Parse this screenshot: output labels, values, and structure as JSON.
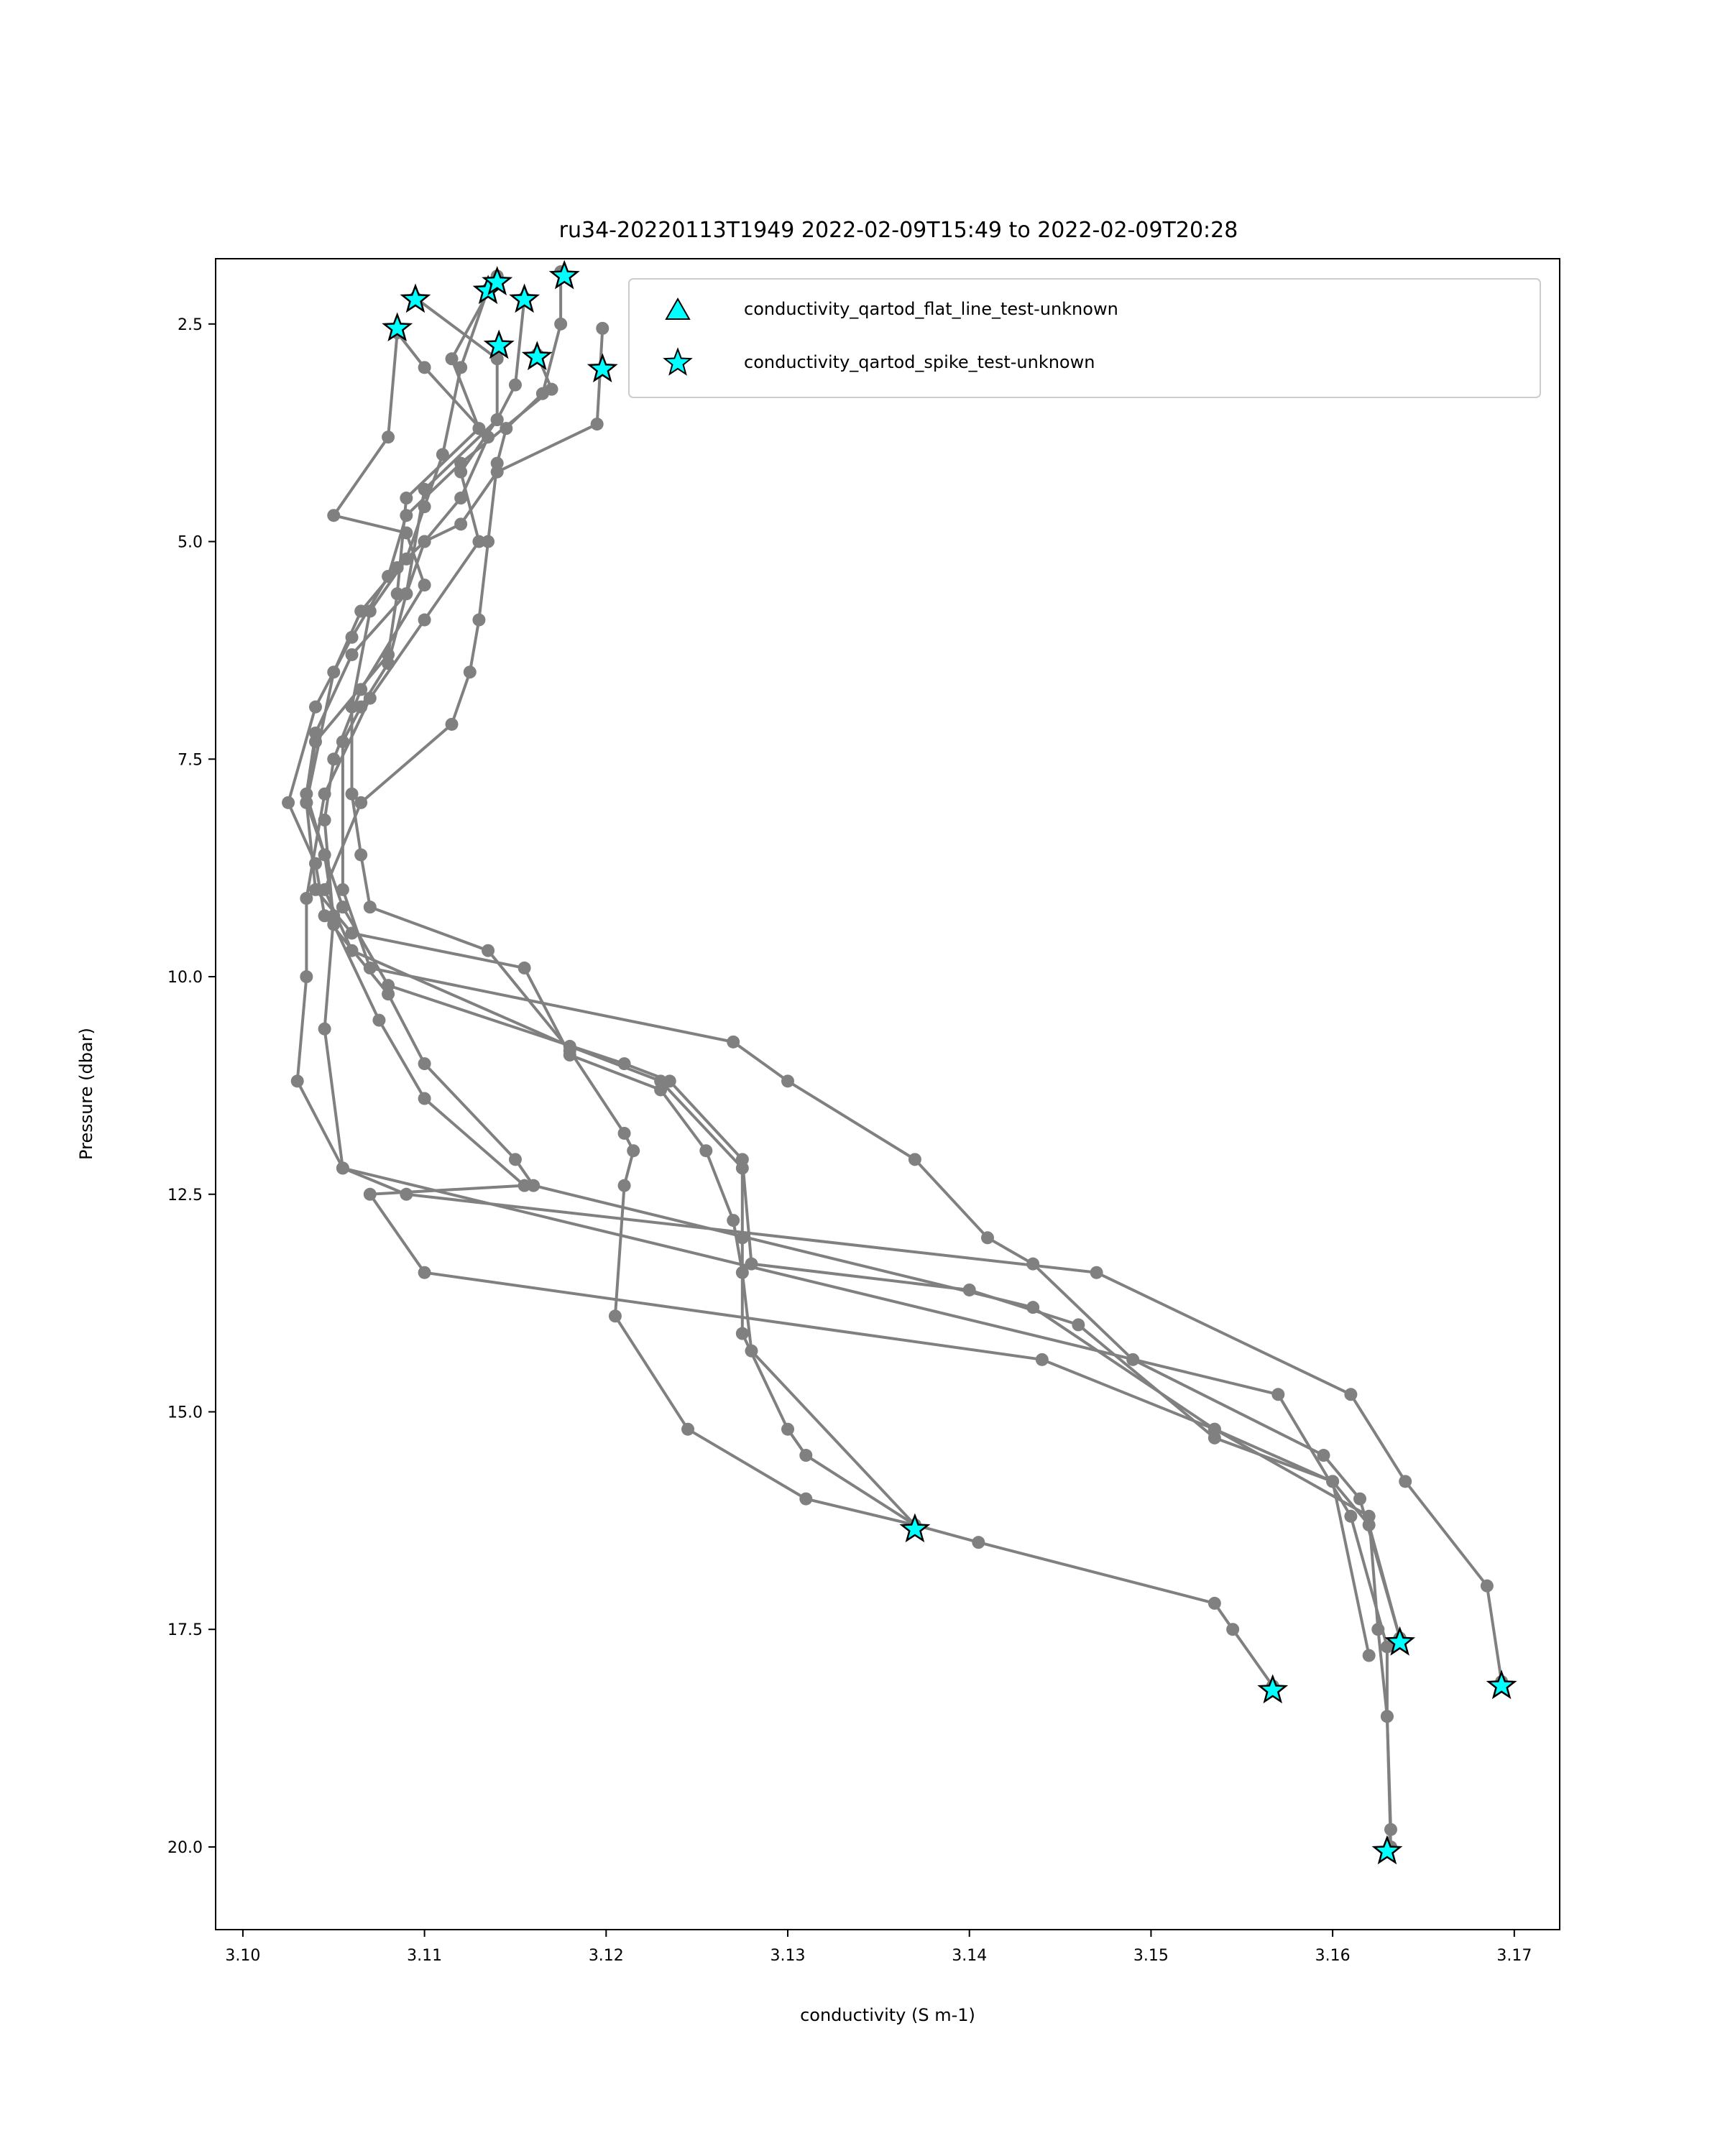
{
  "chart_data": {
    "type": "scatter",
    "title": "ru34-20220113T1949 2022-02-09T15:49 to 2022-02-09T20:28",
    "xlabel": "conductivity (S m-1)",
    "ylabel": "Pressure (dbar)",
    "xlim": [
      3.0985,
      3.1725
    ],
    "ylim": [
      20.95,
      1.75
    ],
    "y_inverted": true,
    "grid": false,
    "legend_position": "top-right",
    "x_ticks": [
      "3.10",
      "3.11",
      "3.12",
      "3.13",
      "3.14",
      "3.15",
      "3.16",
      "3.17"
    ],
    "x_tick_values": [
      3.1,
      3.11,
      3.12,
      3.13,
      3.14,
      3.15,
      3.16,
      3.17
    ],
    "y_ticks": [
      "2.5",
      "5.0",
      "7.5",
      "10.0",
      "12.5",
      "15.0",
      "17.5",
      "20.0"
    ],
    "y_tick_values": [
      2.5,
      5.0,
      7.5,
      10.0,
      12.5,
      15.0,
      17.5,
      20.0
    ],
    "colors": {
      "profile_line": "#808080",
      "flag_fill": "#00ffff",
      "flag_edge": "#000000"
    },
    "legend": [
      {
        "label": "conductivity_qartod_flat_line_test-unknown",
        "marker": "triangle"
      },
      {
        "label": "conductivity_qartod_spike_test-unknown",
        "marker": "star"
      }
    ],
    "series": [
      {
        "values": [
          [
            3.1085,
            2.6
          ],
          [
            3.11,
            3.0
          ],
          [
            3.1135,
            3.8
          ],
          [
            3.112,
            4.5
          ],
          [
            3.11,
            5.0
          ],
          [
            3.109,
            5.6
          ],
          [
            3.106,
            6.3
          ],
          [
            3.104,
            7.2
          ],
          [
            3.1035,
            7.9
          ],
          [
            3.1045,
            8.6
          ],
          [
            3.105,
            9.3
          ],
          [
            3.1045,
            10.6
          ],
          [
            3.1055,
            12.2
          ],
          [
            3.157,
            14.8
          ],
          [
            3.161,
            16.2
          ],
          [
            3.163,
            17.7
          ],
          [
            3.163,
            18.5
          ],
          [
            3.1632,
            19.8
          ],
          [
            3.163,
            20.05
          ]
        ]
      },
      {
        "values": [
          [
            3.1095,
            2.2
          ],
          [
            3.114,
            2.9
          ],
          [
            3.114,
            3.6
          ],
          [
            3.112,
            4.2
          ],
          [
            3.113,
            5.0
          ],
          [
            3.11,
            5.9
          ],
          [
            3.107,
            6.8
          ],
          [
            3.1045,
            7.9
          ],
          [
            3.1035,
            9.1
          ],
          [
            3.1035,
            10.0
          ],
          [
            3.103,
            11.2
          ],
          [
            3.1055,
            12.2
          ],
          [
            3.109,
            12.5
          ],
          [
            3.147,
            13.4
          ],
          [
            3.161,
            14.8
          ],
          [
            3.164,
            15.8
          ],
          [
            3.1685,
            17.0
          ],
          [
            3.1693,
            18.1
          ]
        ]
      },
      {
        "values": [
          [
            3.1135,
            2.1
          ],
          [
            3.112,
            3.0
          ],
          [
            3.111,
            4.0
          ],
          [
            3.11,
            4.6
          ],
          [
            3.109,
            5.2
          ],
          [
            3.107,
            5.8
          ],
          [
            3.106,
            6.9
          ],
          [
            3.106,
            7.9
          ],
          [
            3.1065,
            8.6
          ],
          [
            3.107,
            9.2
          ],
          [
            3.1135,
            9.7
          ],
          [
            3.118,
            10.85
          ],
          [
            3.121,
            11.8
          ],
          [
            3.1215,
            12.0
          ],
          [
            3.121,
            12.4
          ],
          [
            3.1205,
            13.9
          ],
          [
            3.1245,
            15.2
          ],
          [
            3.131,
            16.0
          ],
          [
            3.137,
            16.3
          ],
          [
            3.1405,
            16.5
          ],
          [
            3.1535,
            17.2
          ],
          [
            3.1545,
            17.5
          ],
          [
            3.1567,
            18.15
          ]
        ]
      },
      {
        "values": [
          [
            3.1155,
            2.2
          ],
          [
            3.115,
            3.2
          ],
          [
            3.114,
            3.6
          ],
          [
            3.11,
            4.4
          ],
          [
            3.109,
            5.6
          ],
          [
            3.108,
            6.4
          ],
          [
            3.1065,
            6.9
          ],
          [
            3.1055,
            7.3
          ],
          [
            3.1055,
            9.0
          ],
          [
            3.107,
            9.9
          ],
          [
            3.127,
            10.75
          ],
          [
            3.13,
            11.2
          ],
          [
            3.137,
            12.1
          ],
          [
            3.141,
            13.0
          ],
          [
            3.1435,
            13.3
          ],
          [
            3.149,
            14.4
          ],
          [
            3.1595,
            15.5
          ],
          [
            3.1615,
            16.0
          ],
          [
            3.1637,
            17.6
          ]
        ]
      },
      {
        "values": [
          [
            3.114,
            1.95
          ],
          [
            3.1115,
            2.9
          ],
          [
            3.113,
            3.7
          ],
          [
            3.109,
            4.5
          ],
          [
            3.1085,
            5.6
          ],
          [
            3.108,
            6.3
          ],
          [
            3.104,
            7.3
          ],
          [
            3.1035,
            8.0
          ],
          [
            3.104,
            9.0
          ],
          [
            3.106,
            9.5
          ],
          [
            3.1155,
            9.9
          ],
          [
            3.118,
            10.9
          ],
          [
            3.123,
            11.3
          ],
          [
            3.1255,
            12.0
          ],
          [
            3.127,
            12.8
          ],
          [
            3.1275,
            13.4
          ],
          [
            3.128,
            14.3
          ],
          [
            3.137,
            16.3
          ]
        ]
      },
      {
        "values": [
          [
            3.1175,
            1.9
          ],
          [
            3.1175,
            2.5
          ],
          [
            3.1165,
            3.3
          ],
          [
            3.1145,
            3.7
          ],
          [
            3.114,
            4.1
          ],
          [
            3.1135,
            5.0
          ],
          [
            3.113,
            5.9
          ],
          [
            3.1125,
            6.5
          ],
          [
            3.1115,
            7.1
          ],
          [
            3.1065,
            8.0
          ],
          [
            3.1045,
            9.0
          ],
          [
            3.106,
            9.7
          ],
          [
            3.118,
            10.8
          ],
          [
            3.123,
            11.2
          ],
          [
            3.1275,
            12.2
          ],
          [
            3.1275,
            13.0
          ],
          [
            3.1275,
            14.1
          ],
          [
            3.13,
            15.2
          ],
          [
            3.131,
            15.5
          ],
          [
            3.137,
            16.3
          ]
        ]
      },
      {
        "values": [
          [
            3.1198,
            2.55
          ],
          [
            3.1195,
            3.65
          ],
          [
            3.114,
            4.2
          ],
          [
            3.112,
            4.8
          ],
          [
            3.11,
            5.0
          ],
          [
            3.1085,
            5.3
          ],
          [
            3.1065,
            5.8
          ],
          [
            3.105,
            6.5
          ],
          [
            3.1035,
            8.0
          ],
          [
            3.1055,
            9.2
          ],
          [
            3.108,
            10.1
          ],
          [
            3.121,
            11.0
          ],
          [
            3.1235,
            11.2
          ],
          [
            3.1275,
            12.1
          ],
          [
            3.128,
            13.3
          ],
          [
            3.14,
            13.6
          ],
          [
            3.146,
            14.0
          ],
          [
            3.1535,
            15.3
          ],
          [
            3.16,
            15.8
          ],
          [
            3.162,
            17.8
          ]
        ]
      },
      {
        "values": [
          [
            3.1162,
            2.85
          ],
          [
            3.117,
            3.25
          ],
          [
            3.112,
            4.1
          ],
          [
            3.109,
            4.7
          ],
          [
            3.108,
            5.4
          ],
          [
            3.106,
            6.1
          ],
          [
            3.104,
            6.9
          ],
          [
            3.1025,
            8.0
          ],
          [
            3.104,
            8.7
          ],
          [
            3.1045,
            9.3
          ],
          [
            3.108,
            10.2
          ],
          [
            3.11,
            11.0
          ],
          [
            3.115,
            12.1
          ],
          [
            3.116,
            12.4
          ],
          [
            3.1435,
            13.8
          ],
          [
            3.1535,
            15.2
          ],
          [
            3.162,
            16.2
          ],
          [
            3.1625,
            17.5
          ],
          [
            3.163,
            18.5
          ],
          [
            3.1632,
            20.0
          ]
        ]
      },
      {
        "values": [
          [
            3.1085,
            2.6
          ],
          [
            3.108,
            3.8
          ],
          [
            3.105,
            4.7
          ],
          [
            3.109,
            4.9
          ],
          [
            3.11,
            5.5
          ],
          [
            3.1065,
            6.7
          ],
          [
            3.105,
            7.5
          ],
          [
            3.1045,
            8.2
          ],
          [
            3.105,
            9.4
          ],
          [
            3.1075,
            10.5
          ],
          [
            3.11,
            11.4
          ],
          [
            3.1155,
            12.4
          ],
          [
            3.107,
            12.5
          ],
          [
            3.11,
            13.4
          ],
          [
            3.144,
            14.4
          ],
          [
            3.1535,
            15.2
          ],
          [
            3.16,
            15.8
          ],
          [
            3.162,
            16.3
          ],
          [
            3.1637,
            17.6
          ]
        ]
      }
    ],
    "flagged_spike_points": [
      [
        3.1085,
        2.55
      ],
      [
        3.1095,
        2.22
      ],
      [
        3.1135,
        2.12
      ],
      [
        3.114,
        2.02
      ],
      [
        3.1155,
        2.22
      ],
      [
        3.1177,
        1.95
      ],
      [
        3.1141,
        2.75
      ],
      [
        3.1162,
        2.88
      ],
      [
        3.1198,
        3.02
      ],
      [
        3.137,
        16.35
      ],
      [
        3.1567,
        18.2
      ],
      [
        3.1637,
        17.65
      ],
      [
        3.1693,
        18.15
      ],
      [
        3.163,
        20.05
      ]
    ],
    "flagged_flat_line_points": []
  }
}
